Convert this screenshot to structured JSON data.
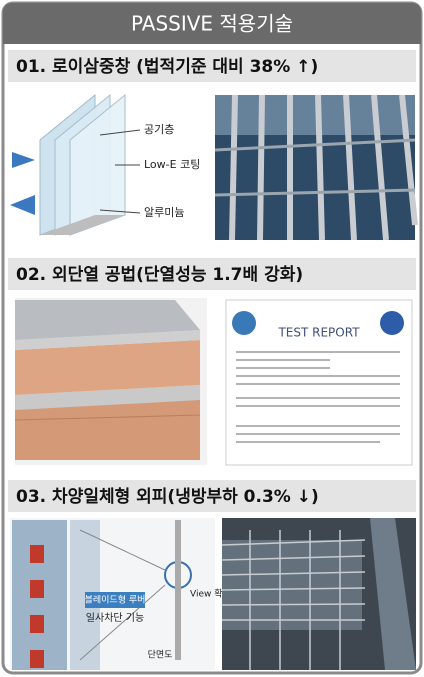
{
  "header": {
    "title": "PASSIVE 적용기술"
  },
  "sections": [
    {
      "title": "01. 로이삼중창 (법적기준 대비 38% ↑)",
      "labels": [
        "공기층",
        "Low-E 코팅",
        "알루미늄"
      ]
    },
    {
      "title": "02. 외단열 공법(단열성능 1.7배 강화)",
      "labels": [
        "TEST REPORT"
      ]
    },
    {
      "title": "03. 차양일체형 외피(냉방부하 0.3% ↓)",
      "labels": [
        "블레이드형 루버",
        "일사차단 기능",
        "View 확대",
        "단면도"
      ]
    }
  ]
}
